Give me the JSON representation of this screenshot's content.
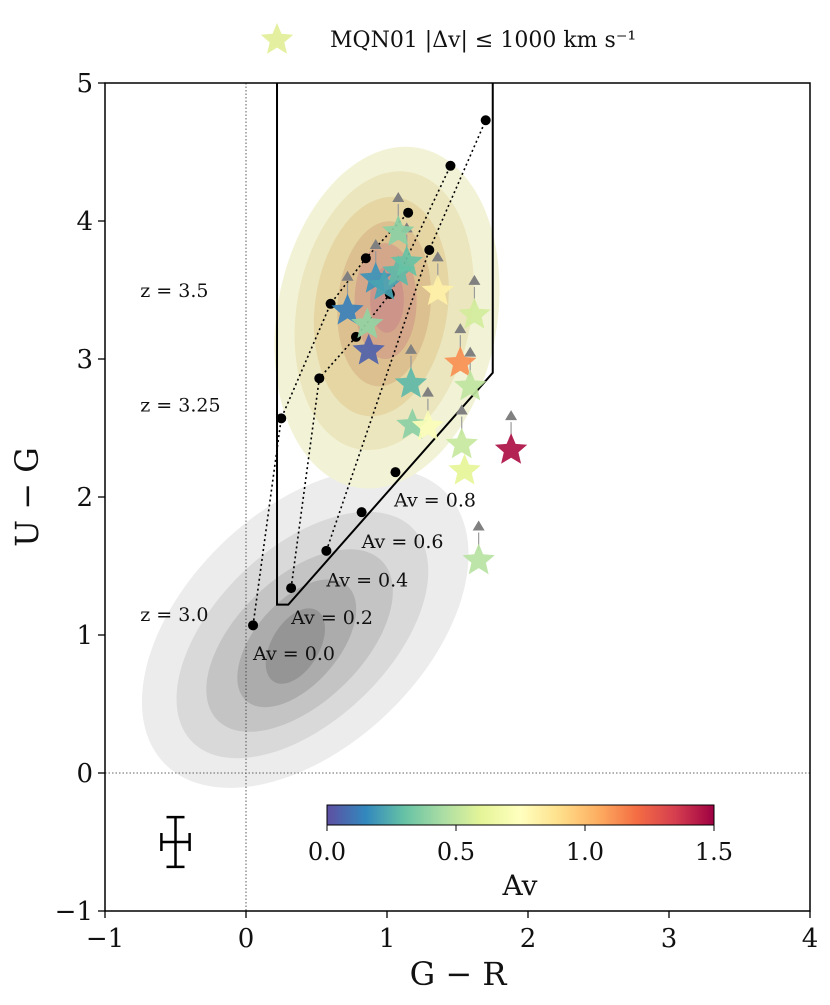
{
  "chart_data": {
    "type": "scatter",
    "xlabel": "G − R",
    "ylabel": "U − G",
    "xlim": [
      -1,
      4
    ],
    "ylim": [
      -1,
      5
    ],
    "xticks": [
      -1,
      0,
      1,
      2,
      3,
      4
    ],
    "yticks": [
      -1,
      0,
      1,
      2,
      3,
      4,
      5
    ],
    "grid": false,
    "reference_lines": {
      "x": 0,
      "y": 0,
      "style": "dotted"
    },
    "legend": {
      "position": "top-center",
      "label": "MQN01 |Δv| ≤ 1000 km s⁻¹",
      "marker": "star",
      "color": "#e4f0a0"
    },
    "selection_box": [
      [
        0.22,
        5.0
      ],
      [
        0.22,
        1.22
      ],
      [
        0.3,
        1.22
      ],
      [
        1.75,
        2.9
      ],
      [
        1.75,
        5.0
      ]
    ],
    "track_annotations": [
      {
        "text": "z = 3.5",
        "x": -0.75,
        "y": 3.45
      },
      {
        "text": "z = 3.25",
        "x": -0.75,
        "y": 2.62
      },
      {
        "text": "z = 3.0",
        "x": -0.75,
        "y": 1.1
      },
      {
        "text": "Av = 0.0",
        "x": 0.05,
        "y": 0.82
      },
      {
        "text": "Av = 0.2",
        "x": 0.32,
        "y": 1.08
      },
      {
        "text": "Av = 0.4",
        "x": 0.57,
        "y": 1.35
      },
      {
        "text": "Av = 0.6",
        "x": 0.82,
        "y": 1.63
      },
      {
        "text": "Av = 0.8",
        "x": 1.05,
        "y": 1.93
      }
    ],
    "tracks": [
      {
        "av": 0.0,
        "points": [
          [
            0.05,
            1.07
          ],
          [
            0.25,
            2.57
          ],
          [
            0.6,
            3.4
          ],
          [
            0.85,
            3.73
          ],
          [
            1.15,
            4.06
          ]
        ]
      },
      {
        "av": 0.2,
        "points": [
          [
            0.32,
            1.34
          ],
          [
            0.52,
            2.86
          ],
          [
            0.78,
            3.16
          ],
          [
            1.02,
            3.47
          ],
          [
            1.45,
            4.4
          ]
        ]
      },
      {
        "av": 0.4,
        "points": [
          [
            0.57,
            1.61
          ],
          [
            1.3,
            3.79
          ],
          [
            1.7,
            4.73
          ]
        ]
      },
      {
        "av": 0.6,
        "points": [
          [
            0.82,
            1.89
          ]
        ]
      },
      {
        "av": 0.8,
        "points": [
          [
            1.06,
            2.18
          ]
        ]
      }
    ],
    "series": [
      {
        "name": "MQN01 |Δv| ≤ 1000 km s⁻¹",
        "points": [
          {
            "x": 1.08,
            "y": 3.92,
            "av": 0.38,
            "lower_limit": true
          },
          {
            "x": 0.92,
            "y": 3.58,
            "av": 0.18,
            "lower_limit": true
          },
          {
            "x": 0.98,
            "y": 3.53,
            "av": 0.22,
            "lower_limit": false
          },
          {
            "x": 1.08,
            "y": 3.63,
            "av": 0.28,
            "lower_limit": false
          },
          {
            "x": 1.14,
            "y": 3.7,
            "av": 0.3,
            "lower_limit": true
          },
          {
            "x": 0.72,
            "y": 3.35,
            "av": 0.13,
            "lower_limit": true
          },
          {
            "x": 0.87,
            "y": 3.06,
            "av": 0.05,
            "lower_limit": false
          },
          {
            "x": 0.86,
            "y": 3.25,
            "av": 0.4,
            "lower_limit": false
          },
          {
            "x": 1.36,
            "y": 3.49,
            "av": 0.82,
            "lower_limit": true
          },
          {
            "x": 1.62,
            "y": 3.32,
            "av": 0.55,
            "lower_limit": true
          },
          {
            "x": 1.52,
            "y": 2.97,
            "av": 1.12,
            "lower_limit": true
          },
          {
            "x": 1.59,
            "y": 2.8,
            "av": 0.5,
            "lower_limit": true
          },
          {
            "x": 1.17,
            "y": 2.82,
            "av": 0.28,
            "lower_limit": true
          },
          {
            "x": 1.18,
            "y": 2.52,
            "av": 0.38,
            "lower_limit": false
          },
          {
            "x": 1.29,
            "y": 2.51,
            "av": 0.72,
            "lower_limit": true
          },
          {
            "x": 1.53,
            "y": 2.38,
            "av": 0.52,
            "lower_limit": true
          },
          {
            "x": 1.55,
            "y": 2.19,
            "av": 0.6,
            "lower_limit": false
          },
          {
            "x": 1.88,
            "y": 2.34,
            "av": 1.46,
            "lower_limit": true
          },
          {
            "x": 1.65,
            "y": 1.54,
            "av": 0.48,
            "lower_limit": true
          }
        ]
      }
    ],
    "error_bar": {
      "x": -0.5,
      "y": -0.5,
      "xerr": 0.1,
      "yerr": 0.18
    },
    "colorbar": {
      "label": "Av",
      "range": [
        0,
        1.5
      ],
      "ticks": [
        "0.0",
        "0.5",
        "1.0",
        "1.5"
      ],
      "colormap": "Spectral_r",
      "placement": "inside bottom"
    },
    "density_contours": [
      {
        "name": "reference-grey",
        "colors": [
          "#ececec",
          "#d9d9d9",
          "#c4c4c4",
          "#acacac",
          "#959595"
        ]
      },
      {
        "name": "reference-color",
        "colors": [
          "#f2f3d6",
          "#ebe6bd",
          "#e5d6a4",
          "#dcc090",
          "#d4a68a",
          "#cd958a"
        ]
      }
    ]
  }
}
